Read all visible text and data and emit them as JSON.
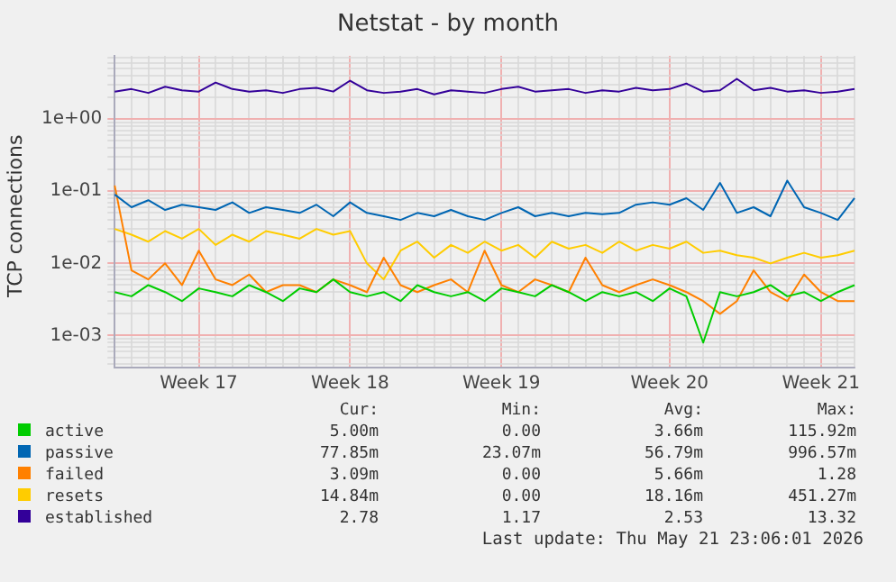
{
  "chart_data": {
    "type": "line",
    "title": "Netstat - by month",
    "ylabel": "TCP connections",
    "log": "y",
    "grid": true,
    "legend": "bottom",
    "marker": "none",
    "line_style": "solid",
    "ylim": [
      0.00036,
      7.5
    ],
    "yticks": [
      {
        "value": 0.0004,
        "label": null
      },
      {
        "value": 0.0005,
        "label": null
      },
      {
        "value": 0.0006,
        "label": null
      },
      {
        "value": 0.0007,
        "label": null
      },
      {
        "value": 0.0008,
        "label": null
      },
      {
        "value": 0.0009,
        "label": null
      },
      {
        "value": 0.001,
        "label": "1e-03"
      },
      {
        "value": 0.002,
        "label": null
      },
      {
        "value": 0.003,
        "label": null
      },
      {
        "value": 0.004,
        "label": null
      },
      {
        "value": 0.005,
        "label": null
      },
      {
        "value": 0.006,
        "label": null
      },
      {
        "value": 0.007,
        "label": null
      },
      {
        "value": 0.008,
        "label": null
      },
      {
        "value": 0.009,
        "label": null
      },
      {
        "value": 0.01,
        "label": "1e-02"
      },
      {
        "value": 0.02,
        "label": null
      },
      {
        "value": 0.03,
        "label": null
      },
      {
        "value": 0.04,
        "label": null
      },
      {
        "value": 0.05,
        "label": null
      },
      {
        "value": 0.06,
        "label": null
      },
      {
        "value": 0.07,
        "label": null
      },
      {
        "value": 0.08,
        "label": null
      },
      {
        "value": 0.09,
        "label": null
      },
      {
        "value": 0.1,
        "label": "1e-01"
      },
      {
        "value": 0.2,
        "label": null
      },
      {
        "value": 0.3,
        "label": null
      },
      {
        "value": 0.4,
        "label": null
      },
      {
        "value": 0.5,
        "label": null
      },
      {
        "value": 0.6,
        "label": null
      },
      {
        "value": 0.7,
        "label": null
      },
      {
        "value": 0.8,
        "label": null
      },
      {
        "value": 0.9,
        "label": null
      },
      {
        "value": 1,
        "label": "1e+00"
      },
      {
        "value": 2,
        "label": null
      },
      {
        "value": 3,
        "label": null
      },
      {
        "value": 4,
        "label": null
      },
      {
        "value": 5,
        "label": null
      },
      {
        "value": 6,
        "label": null
      },
      {
        "value": 7,
        "label": null
      }
    ],
    "categories": [
      null,
      null,
      null,
      null,
      null,
      "Week 17",
      null,
      null,
      null,
      null,
      null,
      null,
      null,
      null,
      "Week 18",
      null,
      null,
      null,
      null,
      null,
      null,
      null,
      null,
      "Week 19",
      null,
      null,
      null,
      null,
      null,
      null,
      null,
      null,
      null,
      "Week 20",
      null,
      null,
      null,
      null,
      null,
      null,
      null,
      null,
      "Week 21",
      null,
      null
    ],
    "series": [
      {
        "name": "active",
        "color": "#00cc00",
        "values": [
          0.004,
          0.0035,
          0.005,
          0.004,
          0.003,
          0.0045,
          0.004,
          0.0035,
          0.005,
          0.004,
          0.003,
          0.0045,
          0.004,
          0.006,
          0.004,
          0.0035,
          0.004,
          0.003,
          0.005,
          0.004,
          0.0035,
          0.004,
          0.003,
          0.0045,
          0.004,
          0.0035,
          0.005,
          0.004,
          0.003,
          0.004,
          0.0035,
          0.004,
          0.003,
          0.0045,
          0.0035,
          0.0008,
          0.004,
          0.0035,
          0.004,
          0.005,
          0.0035,
          0.004,
          0.003,
          0.004,
          0.005
        ]
      },
      {
        "name": "passive",
        "color": "#0066b3",
        "values": [
          0.09,
          0.06,
          0.075,
          0.055,
          0.065,
          0.06,
          0.055,
          0.07,
          0.05,
          0.06,
          0.055,
          0.05,
          0.065,
          0.045,
          0.07,
          0.05,
          0.045,
          0.04,
          0.05,
          0.045,
          0.055,
          0.045,
          0.04,
          0.05,
          0.06,
          0.045,
          0.05,
          0.045,
          0.05,
          0.048,
          0.05,
          0.065,
          0.07,
          0.065,
          0.08,
          0.055,
          0.13,
          0.05,
          0.06,
          0.045,
          0.14,
          0.06,
          0.05,
          0.04,
          0.08
        ]
      },
      {
        "name": "failed",
        "color": "#ff8000",
        "values": [
          0.12,
          0.008,
          0.006,
          0.01,
          0.005,
          0.015,
          0.006,
          0.005,
          0.007,
          0.004,
          0.005,
          0.005,
          0.004,
          0.006,
          0.005,
          0.004,
          0.012,
          0.005,
          0.004,
          0.005,
          0.006,
          0.004,
          0.015,
          0.005,
          0.004,
          0.006,
          0.005,
          0.004,
          0.012,
          0.005,
          0.004,
          0.005,
          0.006,
          0.005,
          0.004,
          0.003,
          0.002,
          0.003,
          0.008,
          0.004,
          0.003,
          0.007,
          0.004,
          0.003,
          0.003
        ]
      },
      {
        "name": "resets",
        "color": "#ffcc00",
        "values": [
          0.03,
          0.025,
          0.02,
          0.028,
          0.022,
          0.03,
          0.018,
          0.025,
          0.02,
          0.028,
          0.025,
          0.022,
          0.03,
          0.025,
          0.028,
          0.01,
          0.006,
          0.015,
          0.02,
          0.012,
          0.018,
          0.014,
          0.02,
          0.015,
          0.018,
          0.012,
          0.02,
          0.016,
          0.018,
          0.014,
          0.02,
          0.015,
          0.018,
          0.016,
          0.02,
          0.014,
          0.015,
          0.013,
          0.012,
          0.01,
          0.012,
          0.014,
          0.012,
          0.013,
          0.015
        ]
      },
      {
        "name": "established",
        "color": "#330099",
        "values": [
          2.4,
          2.6,
          2.3,
          2.8,
          2.5,
          2.4,
          3.2,
          2.6,
          2.4,
          2.5,
          2.3,
          2.6,
          2.7,
          2.4,
          3.4,
          2.5,
          2.3,
          2.4,
          2.6,
          2.2,
          2.5,
          2.4,
          2.3,
          2.6,
          2.8,
          2.4,
          2.5,
          2.6,
          2.3,
          2.5,
          2.4,
          2.7,
          2.5,
          2.6,
          3.1,
          2.4,
          2.5,
          3.6,
          2.5,
          2.7,
          2.4,
          2.5,
          2.3,
          2.4,
          2.6
        ]
      }
    ],
    "annotations": [
      "Cur:",
      "Min:",
      "Avg:",
      "Max:",
      "5.00m",
      "0.00",
      "3.66m",
      "115.92m",
      "77.85m",
      "23.07m",
      "56.79m",
      "996.57m",
      "3.09m",
      "0.00",
      "5.66m",
      "1.28",
      "14.84m",
      "0.00",
      "18.16m",
      "451.27m",
      "2.78",
      "1.17",
      "2.53",
      "13.32",
      "Last update: Thu May 21 23:06:01 2026"
    ]
  }
}
